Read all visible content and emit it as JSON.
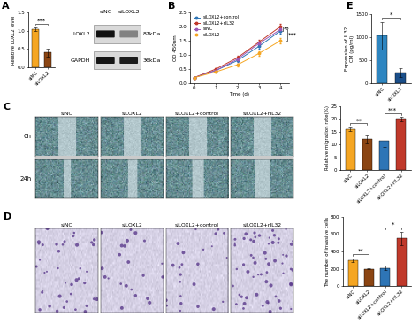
{
  "chart_data": [
    {
      "type": "bar",
      "title": "A",
      "ylabel": "Relative LOXL2 level",
      "categories": [
        "siNC",
        "siLOXL2"
      ],
      "values": [
        1.05,
        0.4
      ],
      "errors": [
        0.05,
        0.12
      ],
      "colors": [
        "#F5A623",
        "#8B4513"
      ],
      "ylim": [
        0,
        1.5
      ],
      "yticks": [
        {
          "value": 0,
          "label": "0.0"
        },
        {
          "value": 0.5,
          "label": "0.5"
        },
        {
          "value": 1.0,
          "label": "1.0"
        },
        {
          "value": 1.5,
          "label": "1.5"
        }
      ],
      "annotations": [
        {
          "text": "***",
          "pair": [
            "siNC",
            "siLOXL2"
          ]
        }
      ]
    },
    {
      "type": "western_blot",
      "lanes": [
        "siNC",
        "siLOXL2"
      ],
      "bands": [
        {
          "name": "LOXL2",
          "size": "87kDa"
        },
        {
          "name": "GAPDH",
          "size": "36kDa"
        }
      ]
    },
    {
      "type": "line",
      "title": "B",
      "xlabel": "Time (d)",
      "ylabel": "OD 450nm",
      "x": [
        0,
        1,
        2,
        3,
        4
      ],
      "xlim": [
        -0.2,
        4.4
      ],
      "xticks": [
        0,
        1,
        2,
        3,
        4
      ],
      "ylim": [
        0,
        2.5
      ],
      "yticks": [
        {
          "value": 0,
          "label": "0.0"
        },
        {
          "value": 0.5,
          "label": "0.5"
        },
        {
          "value": 1.0,
          "label": "1.0"
        },
        {
          "value": 1.5,
          "label": "1.5"
        },
        {
          "value": 2.0,
          "label": "2.0"
        },
        {
          "value": 2.5,
          "label": "2.5"
        }
      ],
      "marker": "o",
      "legend": "upper left",
      "series": [
        {
          "name": "siLOXL2+control",
          "color": "#2E75B6",
          "values": [
            0.2,
            0.45,
            0.8,
            1.3,
            1.85
          ],
          "errors": [
            0.02,
            0.04,
            0.06,
            0.08,
            0.1
          ]
        },
        {
          "name": "siLOXL2+rIL32",
          "color": "#C0392B",
          "values": [
            0.2,
            0.5,
            0.9,
            1.45,
            2.0
          ],
          "errors": [
            0.02,
            0.04,
            0.06,
            0.08,
            0.1
          ]
        },
        {
          "name": "siNC",
          "color": "#9B59B6",
          "values": [
            0.2,
            0.45,
            0.85,
            1.4,
            1.9
          ],
          "errors": [
            0.02,
            0.04,
            0.06,
            0.08,
            0.1
          ]
        },
        {
          "name": "siLOXL2",
          "color": "#F5A623",
          "values": [
            0.2,
            0.4,
            0.65,
            1.05,
            1.5
          ],
          "errors": [
            0.02,
            0.03,
            0.05,
            0.07,
            0.08
          ]
        }
      ],
      "annotations": [
        {
          "text": "**",
          "pair": [
            "siLOXL2+control",
            "siLOXL2+rIL32"
          ]
        },
        {
          "text": "***",
          "pair": [
            "siNC",
            "siLOXL2"
          ]
        }
      ]
    },
    {
      "type": "wound_images",
      "title": "C",
      "columns": [
        "siNC",
        "siLOXL2",
        "siLOXL2+control",
        "siLOXL2+rIL32"
      ],
      "rows": [
        "0h",
        "24h"
      ]
    },
    {
      "type": "bar",
      "ylabel": "Relative migration rate(%)",
      "categories": [
        "siNC",
        "siLOXL2",
        "siLOXL2+control",
        "siLOXL2+rIL32"
      ],
      "values": [
        16,
        12,
        11.5,
        20
      ],
      "errors": [
        0.8,
        1.5,
        2.5,
        0.8
      ],
      "colors": [
        "#F5A623",
        "#8B4513",
        "#2E75B6",
        "#C0392B"
      ],
      "ylim": [
        0,
        25
      ],
      "yticks": [
        0,
        5,
        10,
        15,
        20,
        25
      ],
      "annotations": [
        {
          "text": "**",
          "pair": [
            "siNC",
            "siLOXL2"
          ]
        },
        {
          "text": "***",
          "pair": [
            "siLOXL2+control",
            "siLOXL2+rIL32"
          ]
        }
      ]
    },
    {
      "type": "transwell_images",
      "title": "D",
      "columns": [
        "siNC",
        "siLOXL2",
        "siLOXL2+control",
        "siLOXL2+rIL32"
      ]
    },
    {
      "type": "bar",
      "ylabel": "The number of invasive cells",
      "categories": [
        "siNC",
        "siLOXL2",
        "siLOXL2+control",
        "siLOXL2+rIL32"
      ],
      "values": [
        300,
        200,
        210,
        550
      ],
      "errors": [
        20,
        10,
        25,
        80
      ],
      "colors": [
        "#F5A623",
        "#8B4513",
        "#2E75B6",
        "#C0392B"
      ],
      "ylim": [
        0,
        800
      ],
      "yticks": [
        0,
        200,
        400,
        600,
        800
      ],
      "annotations": [
        {
          "text": "**",
          "pair": [
            "siNC",
            "siLOXL2"
          ]
        },
        {
          "text": "*",
          "pair": [
            "siLOXL2+control",
            "siLOXL2+rIL32"
          ]
        }
      ]
    },
    {
      "type": "bar",
      "title": "E",
      "ylabel": "Expression of IL32\nCM (pg/ml)",
      "categories": [
        "siNC",
        "siLOXL2"
      ],
      "values": [
        1030,
        230
      ],
      "errors": [
        300,
        100
      ],
      "colors": [
        "#2E86C1",
        "#1B4F8A"
      ],
      "ylim": [
        0,
        1500
      ],
      "yticks": [
        0,
        500,
        1000,
        1500
      ],
      "annotations": [
        {
          "text": "*",
          "pair": [
            "siNC",
            "siLOXL2"
          ]
        }
      ]
    }
  ]
}
